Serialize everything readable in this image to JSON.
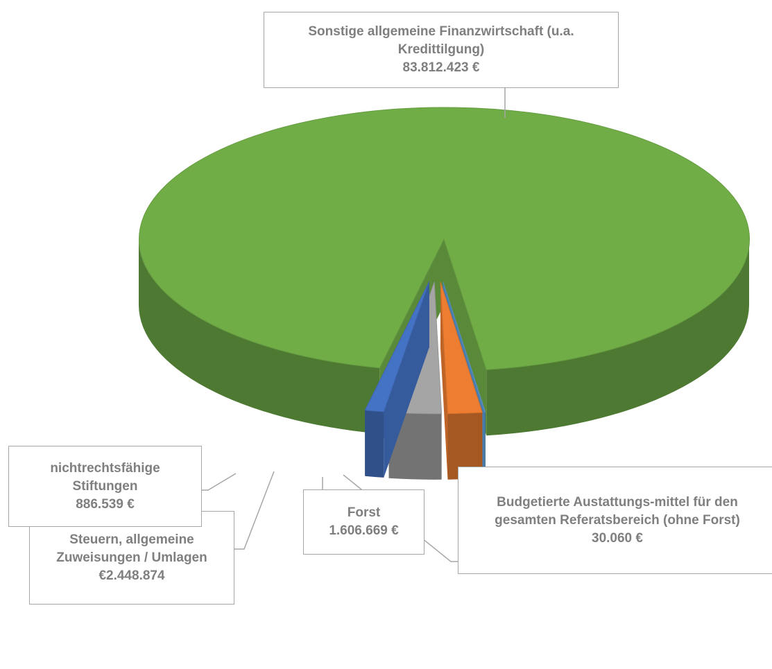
{
  "chart_data": {
    "type": "pie",
    "categories": [
      "Budgetierte Austattungs-mittel für den gesamten Referatsbereich (ohne Forst)",
      "Forst",
      "Steuern, allgemeine Zuweisungen / Umlagen",
      "nichtrechtsfähige Stiftungen",
      "Sonstige allgemeine Finanzwirtschaft (u.a. Kredittilgung)"
    ],
    "values": [
      30060,
      1606669,
      2448874,
      886539,
      83812423
    ],
    "value_labels": [
      "30.060 €",
      "1.606.669 €",
      "€2.448.874",
      "886.539 €",
      "83.812.423 €"
    ],
    "colors": [
      "#5b9bd5",
      "#ed7d31",
      "#a5a5a5",
      "#4472c4",
      "#70ad47"
    ]
  }
}
